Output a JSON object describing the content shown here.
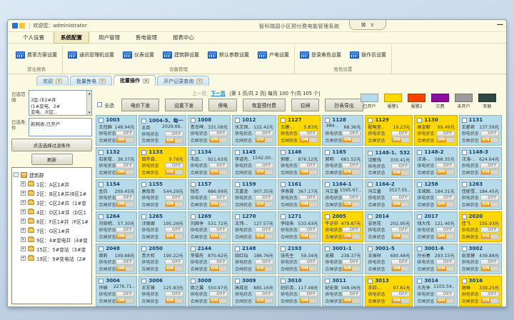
{
  "titlebar": {
    "welcome": "欢迎您：administrator",
    "app_title": "智科瑞园小区预付费电能管理系统",
    "maximize_glyph": "⊠",
    "dropdown_glyph": "∨",
    "minimize_glyph": "—"
  },
  "menu": {
    "items": [
      "个人设置",
      "系统配置",
      "用户管理",
      "售电管理",
      "报表中心"
    ],
    "active_index": 1
  },
  "ribbon": {
    "groups": [
      {
        "label": "营业报表",
        "buttons": [
          "费率方案设置"
        ]
      },
      {
        "label": "设备管理",
        "buttons": [
          "通讯管理机设置",
          "仪表设置",
          "建筑群设置",
          "默认参数设置",
          "户电设置"
        ]
      },
      {
        "label": "角色设置",
        "buttons": [
          "登录角色设置",
          "操作员设置"
        ]
      }
    ]
  },
  "tabs": {
    "items": [
      "欢迎",
      "批量售电",
      "批量操作",
      "开户记录查询"
    ],
    "active_index": 2,
    "close_glyph": "×"
  },
  "sidebar": {
    "range_label": "已选范围",
    "range_text": "3区:(E2#井\n(1#变电、2#\n变电、/E区..",
    "condition_label": "已选条件",
    "condition_text": "新网表:已开户",
    "filter_button": "点击选择过滤条件",
    "refresh_button": "刷新",
    "tree_root": "建筑群",
    "tree_items": [
      "1区：A区1#井",
      "2区：B区1#井(B区1#",
      "3区：C区2#井（1#变",
      "4区：D区1#井（D区1",
      "6区：F区1#井（F区1#",
      "7区：G区1#井",
      "9区：4#变电井（4#变",
      "15区：5#变站（3#变",
      "19区：9#变电站（2#"
    ]
  },
  "toolbar": {
    "prev": "上一页",
    "next": "下一页",
    "page_info": "|第  1 页/共  2 页|  每页  100 个/共  105 个|",
    "select_all": "全选",
    "buttons": [
      "电价下发",
      "设置下发",
      "保电",
      "恢复预付费",
      "拉闸",
      "抄表导出"
    ]
  },
  "legend": {
    "items": [
      {
        "label": "已开户",
        "color": "#b7dbe9"
      },
      {
        "label": "报警1",
        "color": "#ffd800"
      },
      {
        "label": "报警2",
        "color": "#f44500"
      },
      {
        "label": "欠费",
        "color": "#8b0f9b"
      },
      {
        "label": "未开户",
        "color": "#9c9c9c"
      },
      {
        "label": "失联",
        "color": "#2e4944"
      }
    ]
  },
  "grid": {
    "supply_label": "供电状态",
    "switch_label": "合闸状态",
    "off_text": "OFF",
    "on_text": "ON",
    "cells": [
      {
        "num": "1003",
        "name": "王冠群",
        "amount": "148.94元",
        "state": "open"
      },
      {
        "num": "1004-5、每一",
        "name": "王英",
        "amount": "2029.66..",
        "state": "open"
      },
      {
        "num": "1008",
        "name": "青岛啤..",
        "amount": "331.08元",
        "state": "open"
      },
      {
        "num": "1012",
        "name": "水文保..",
        "amount": "122.42元",
        "state": "open"
      },
      {
        "num": "1127",
        "name": "王建-..",
        "amount": "5.83元",
        "state": "alarm1"
      },
      {
        "num": "1128",
        "name": "-MM-..",
        "amount": "68.36元",
        "state": "open"
      },
      {
        "num": "1129",
        "name": "配电室..",
        "amount": "19.23元",
        "state": "alarm1"
      },
      {
        "num": "1130",
        "name": "候金献",
        "amount": "99.49元",
        "state": "alarm1"
      },
      {
        "num": "1131",
        "name": "王郡君",
        "amount": "137.59元",
        "state": "open"
      },
      {
        "num": "1132",
        "name": "石家楼..",
        "amount": "36.37元",
        "state": "open"
      },
      {
        "num": "1133",
        "name": "田开森..",
        "amount": "9.78元",
        "state": "alarm1"
      },
      {
        "num": "1134",
        "name": "韦品..",
        "amount": "921.63元",
        "state": "open"
      },
      {
        "num": "1145",
        "name": "李道先..",
        "amount": "1542.00..",
        "state": "open"
      },
      {
        "num": "1146",
        "name": "郭娜..",
        "amount": "876.12元",
        "state": "open"
      },
      {
        "num": "1165",
        "name": "郭明",
        "amount": "681.52元",
        "state": "open"
      },
      {
        "num": "1148-1、532",
        "name": "沈敏钱",
        "amount": "330.41元",
        "state": "open"
      },
      {
        "num": "1148-2",
        "name": "汪涛-..",
        "amount": "568.35元",
        "state": "open"
      },
      {
        "num": "1148-3",
        "name": "汪涛-..",
        "amount": "624.64元",
        "state": "open"
      },
      {
        "num": "1154",
        "name": "金白",
        "amount": "209.45元",
        "state": "open"
      },
      {
        "num": "1155",
        "name": "唐南南",
        "amount": "544.29元",
        "state": "open"
      },
      {
        "num": "1157",
        "name": "钱杰",
        "amount": "686.99元",
        "state": "open"
      },
      {
        "num": "1159",
        "name": "文嘉金",
        "amount": "907.35元",
        "state": "open"
      },
      {
        "num": "1161",
        "name": "李燕霞",
        "amount": "367.17元",
        "state": "open"
      },
      {
        "num": "1164-1",
        "name": "冯立量",
        "amount": "1595.67..",
        "state": "open"
      },
      {
        "num": "1164-2",
        "name": "冯立量",
        "amount": "3527.05..",
        "state": "open"
      },
      {
        "num": "1258",
        "name": "王城图..",
        "amount": "184.31元",
        "state": "open"
      },
      {
        "num": "1263",
        "name": "佳妮雪..",
        "amount": "184.45元",
        "state": "open"
      },
      {
        "num": "1264",
        "name": "刘晓明..",
        "amount": "57.30元",
        "state": "open"
      },
      {
        "num": "1265",
        "name": "汪丽娜",
        "amount": "195.29元",
        "state": "open"
      },
      {
        "num": "1269",
        "name": "刘国争",
        "amount": "531.72元",
        "state": "open"
      },
      {
        "num": "1270",
        "name": "王玮-..",
        "amount": "127.57元",
        "state": "open"
      },
      {
        "num": "1271",
        "name": "李晓朱",
        "amount": "533.63元",
        "state": "open"
      },
      {
        "num": "2005",
        "name": "牛记中",
        "amount": "479.87元",
        "state": "alarm1"
      },
      {
        "num": "2014",
        "name": "安思花",
        "amount": "202.95元",
        "state": "open"
      },
      {
        "num": "2017",
        "name": "钱大伟",
        "amount": "121.40元",
        "state": "open"
      },
      {
        "num": "2020",
        "name": "佳飞",
        "amount": "155.93元",
        "state": "alarm1"
      },
      {
        "num": "2048",
        "name": "周莉",
        "amount": "109.68元",
        "state": "open"
      },
      {
        "num": "2050",
        "name": "贵大权",
        "amount": "190.22元",
        "state": "open"
      },
      {
        "num": "2144",
        "name": "李福先",
        "amount": "870.62元",
        "state": "open"
      },
      {
        "num": "2148",
        "name": "田红仙",
        "amount": "186.76元",
        "state": "open"
      },
      {
        "num": "2193",
        "name": "张先生",
        "amount": "59.34元",
        "state": "open"
      },
      {
        "num": "3001-1",
        "name": "吴雅",
        "amount": "238.37元",
        "state": "open"
      },
      {
        "num": "3001-5",
        "name": "王振祥",
        "amount": "690.48元",
        "state": "open"
      },
      {
        "num": "3001-6",
        "name": "孙长春",
        "amount": "293.15元",
        "state": "open"
      },
      {
        "num": "3002",
        "name": "俞英健",
        "amount": "439.88元",
        "state": "open"
      },
      {
        "num": "3004",
        "name": "许峰",
        "amount": "2276.71..",
        "state": "open"
      },
      {
        "num": "3006",
        "name": "王军锋",
        "amount": "125.83元",
        "state": "open"
      },
      {
        "num": "3008",
        "name": "周之翼",
        "amount": "550.97元",
        "state": "open"
      },
      {
        "num": "3009",
        "name": "高成忠",
        "amount": "885.16元",
        "state": "open"
      },
      {
        "num": "3010",
        "name": "纪彩英..",
        "amount": "117.48元",
        "state": "open"
      },
      {
        "num": "3011",
        "name": "纪宏美",
        "amount": "348.06元",
        "state": "open"
      },
      {
        "num": "3013",
        "name": "王欣-..",
        "amount": "97.81元",
        "state": "alarm1"
      },
      {
        "num": "3014",
        "name": "凡先争",
        "amount": "1103.54..",
        "state": "open"
      },
      {
        "num": "3016",
        "name": "谢琳",
        "amount": "339.25元",
        "state": "alarm1"
      }
    ]
  }
}
